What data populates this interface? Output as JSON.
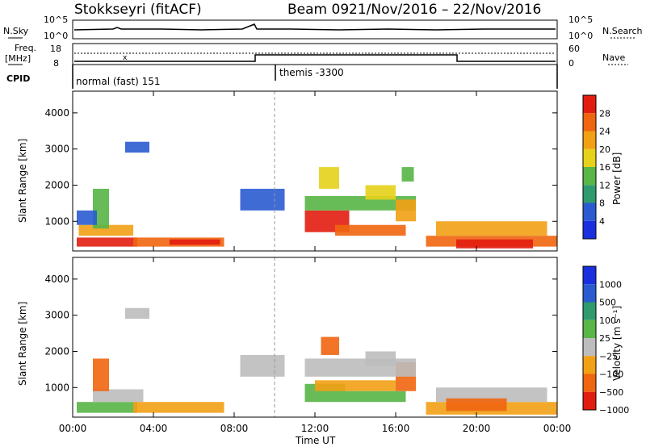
{
  "header": {
    "station": "Stokkseyri (fitACF)",
    "beam": "Beam 09",
    "date_range": "21/Nov/2016 – 22/Nov/2016"
  },
  "top_panels": {
    "nsky_label": "N.Sky",
    "nsearch_label": "N.Search",
    "nsky_ticks": [
      "10^5",
      "10^0"
    ],
    "nsearch_ticks": [
      "10^5",
      "10^0"
    ],
    "freq_label_1": "Freq.",
    "freq_label_2": "[MHz]",
    "freq_ticks": [
      "18",
      "8"
    ],
    "nave_label": "Nave",
    "nave_ticks": [
      "60",
      "0"
    ],
    "cpid_label": "CPID",
    "cpid_segments": [
      "normal (fast) 151",
      "themis -3300"
    ]
  },
  "chart_data": [
    {
      "type": "heatmap",
      "name": "power",
      "x_ticks": [
        "00:00",
        "04:00",
        "08:00",
        "12:00",
        "16:00",
        "20:00",
        "00:00"
      ],
      "y_ticks": [
        "1000",
        "2000",
        "3000",
        "4000"
      ],
      "ylabel": "Slant Range [km]",
      "ylim": [
        180,
        4600
      ],
      "xlim_hours": [
        0,
        24
      ],
      "colorbar": {
        "label": "Power [dB]",
        "ticks": [
          "4",
          "8",
          "12",
          "16",
          "20",
          "24",
          "28"
        ],
        "colors": [
          "#1a2fe0",
          "#2a5bd0",
          "#2f9a6e",
          "#58b546",
          "#e6d21a",
          "#f2a014",
          "#ef6510",
          "#e21d10"
        ]
      },
      "patches": [
        {
          "t0": 0.2,
          "t1": 3.2,
          "r0": 300,
          "r1": 550,
          "level": 7
        },
        {
          "t0": 0.3,
          "t1": 3.0,
          "r0": 600,
          "r1": 900,
          "level": 5
        },
        {
          "t0": 3.0,
          "t1": 7.5,
          "r0": 300,
          "r1": 550,
          "level": 6
        },
        {
          "t0": 4.8,
          "t1": 7.3,
          "r0": 350,
          "r1": 500,
          "level": 7
        },
        {
          "t0": 1.0,
          "t1": 1.8,
          "r0": 800,
          "r1": 1900,
          "level": 3
        },
        {
          "t0": 0.2,
          "t1": 1.2,
          "r0": 900,
          "r1": 1300,
          "level": 1
        },
        {
          "t0": 2.6,
          "t1": 3.8,
          "r0": 2900,
          "r1": 3200,
          "level": 1
        },
        {
          "t0": 11.5,
          "t1": 13.7,
          "r0": 700,
          "r1": 1300,
          "level": 7
        },
        {
          "t0": 13.0,
          "t1": 16.5,
          "r0": 600,
          "r1": 900,
          "level": 6
        },
        {
          "t0": 11.5,
          "t1": 17.0,
          "r0": 1300,
          "r1": 1700,
          "level": 3
        },
        {
          "t0": 12.2,
          "t1": 13.2,
          "r0": 1900,
          "r1": 2500,
          "level": 4
        },
        {
          "t0": 14.5,
          "t1": 16.0,
          "r0": 1600,
          "r1": 2000,
          "level": 4
        },
        {
          "t0": 16.3,
          "t1": 16.9,
          "r0": 2100,
          "r1": 2500,
          "level": 3
        },
        {
          "t0": 16.0,
          "t1": 17.0,
          "r0": 1000,
          "r1": 1600,
          "level": 5
        },
        {
          "t0": 17.5,
          "t1": 24.0,
          "r0": 300,
          "r1": 600,
          "level": 6
        },
        {
          "t0": 18.0,
          "t1": 23.5,
          "r0": 600,
          "r1": 1000,
          "level": 5
        },
        {
          "t0": 19.0,
          "t1": 22.8,
          "r0": 250,
          "r1": 500,
          "level": 7
        },
        {
          "t0": 8.3,
          "t1": 10.5,
          "r0": 1300,
          "r1": 1900,
          "level": 1
        }
      ]
    },
    {
      "type": "heatmap",
      "name": "velocity",
      "x_ticks": [
        "00:00",
        "04:00",
        "08:00",
        "12:00",
        "16:00",
        "20:00",
        "00:00"
      ],
      "y_ticks": [
        "1000",
        "2000",
        "3000",
        "4000"
      ],
      "ylabel": "Slant Range [km]",
      "xlabel": "Time UT",
      "ylim": [
        180,
        4600
      ],
      "xlim_hours": [
        0,
        24
      ],
      "colorbar": {
        "label": "Velocity [m s⁻¹]",
        "ticks": [
          "1000",
          "500",
          "100",
          "25",
          "−25",
          "−100",
          "−500",
          "−1000"
        ],
        "colors": [
          "#1a2fe0",
          "#2a5bd0",
          "#2f9a6e",
          "#58b546",
          "#bdbdbd",
          "#f2a014",
          "#ef6510",
          "#e21d10"
        ]
      },
      "patches": [
        {
          "t0": 0.2,
          "t1": 3.2,
          "r0": 300,
          "r1": 600,
          "level": 3
        },
        {
          "t0": 1.0,
          "t1": 3.5,
          "r0": 600,
          "r1": 950,
          "level": 4
        },
        {
          "t0": 3.0,
          "t1": 7.5,
          "r0": 300,
          "r1": 600,
          "level": 5
        },
        {
          "t0": 1.0,
          "t1": 1.8,
          "r0": 900,
          "r1": 1800,
          "level": 6
        },
        {
          "t0": 2.6,
          "t1": 3.8,
          "r0": 2900,
          "r1": 3200,
          "level": 4
        },
        {
          "t0": 11.5,
          "t1": 13.5,
          "r0": 600,
          "r1": 1100,
          "level": 3
        },
        {
          "t0": 12.0,
          "t1": 16.0,
          "r0": 900,
          "r1": 1200,
          "level": 5
        },
        {
          "t0": 13.5,
          "t1": 16.5,
          "r0": 600,
          "r1": 900,
          "level": 3
        },
        {
          "t0": 16.0,
          "t1": 17.0,
          "r0": 900,
          "r1": 1700,
          "level": 6
        },
        {
          "t0": 11.5,
          "t1": 17.0,
          "r0": 1300,
          "r1": 1800,
          "level": 4
        },
        {
          "t0": 12.3,
          "t1": 13.2,
          "r0": 1900,
          "r1": 2400,
          "level": 6
        },
        {
          "t0": 14.5,
          "t1": 16.0,
          "r0": 1600,
          "r1": 2000,
          "level": 4
        },
        {
          "t0": 17.5,
          "t1": 24.0,
          "r0": 250,
          "r1": 600,
          "level": 5
        },
        {
          "t0": 18.0,
          "t1": 23.5,
          "r0": 600,
          "r1": 1000,
          "level": 4
        },
        {
          "t0": 18.5,
          "t1": 21.5,
          "r0": 350,
          "r1": 700,
          "level": 6
        },
        {
          "t0": 8.3,
          "t1": 10.5,
          "r0": 1300,
          "r1": 1900,
          "level": 4
        }
      ]
    }
  ]
}
